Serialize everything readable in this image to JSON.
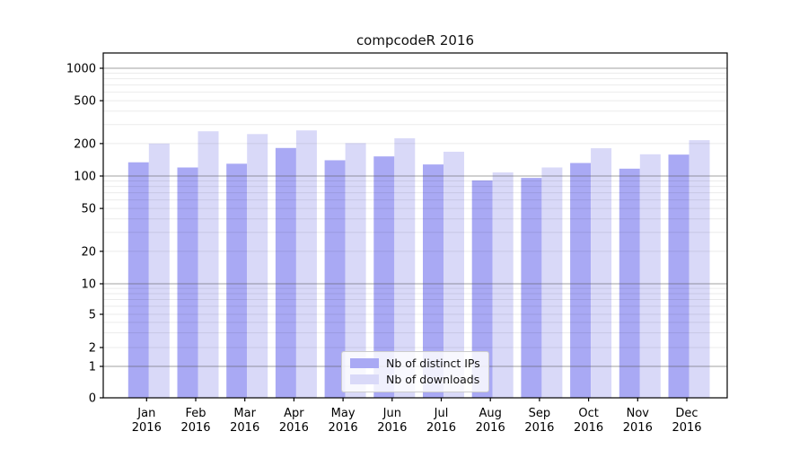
{
  "title": "compcodeR 2016",
  "chart_data": {
    "type": "bar",
    "title": "compcodeR 2016",
    "categories": [
      "Jan 2016",
      "Feb 2016",
      "Mar 2016",
      "Apr 2016",
      "May 2016",
      "Jun 2016",
      "Jul 2016",
      "Aug 2016",
      "Sep 2016",
      "Oct 2016",
      "Nov 2016",
      "Dec 2016"
    ],
    "series": [
      {
        "name": "Nb of distinct IPs",
        "color": "#a9a9f4",
        "values": [
          134,
          120,
          130,
          182,
          140,
          152,
          128,
          91,
          96,
          132,
          117,
          158
        ]
      },
      {
        "name": "Nb of downloads",
        "color": "#d9d9f8",
        "values": [
          200,
          260,
          245,
          265,
          202,
          224,
          168,
          108,
          120,
          181,
          159,
          215
        ]
      }
    ],
    "xlabel": "",
    "ylabel": "",
    "y_ticks": [
      0,
      1,
      2,
      5,
      10,
      20,
      50,
      100,
      200,
      500,
      1000
    ],
    "y_scale": "log (with 0 at baseline)",
    "ylim": [
      0,
      1400
    ],
    "grid": "horizontal, log minor + major lines",
    "legend_position": "inside bottom-center"
  },
  "legend": {
    "entries": [
      {
        "label": "Nb of distinct IPs",
        "color": "#a9a9f4"
      },
      {
        "label": "Nb of downloads",
        "color": "#d9d9f8"
      }
    ]
  },
  "colors": {
    "background": "#ffffff",
    "axis": "#000000",
    "grid_major": "#9b9b9b",
    "grid_minor": "#e9e9e9",
    "text": "#000000"
  }
}
